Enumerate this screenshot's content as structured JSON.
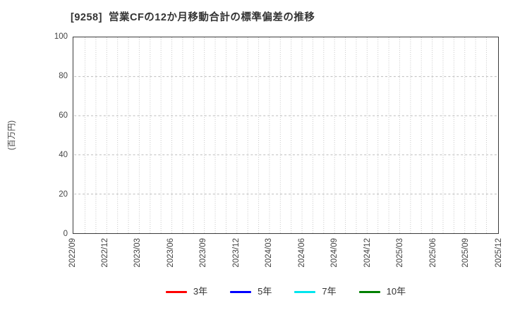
{
  "chart_data": {
    "type": "line",
    "title": "[9258]  営業CFの12か月移動合計の標準偏差の推移",
    "ylabel": "(百万円)",
    "xlabel": "",
    "ylim": [
      0,
      100
    ],
    "yticks": [
      0,
      20,
      40,
      60,
      80,
      100
    ],
    "x_tick_labels": [
      "2022/09",
      "2022/12",
      "2023/03",
      "2023/06",
      "2023/09",
      "2023/12",
      "2024/03",
      "2024/06",
      "2024/09",
      "2024/12",
      "2025/03",
      "2025/06",
      "2025/09",
      "2025/12"
    ],
    "x_minor_divisions_per_major": 3,
    "grid": true,
    "legend_position": "bottom",
    "plot_is_empty": true,
    "series": [
      {
        "name": "3年",
        "color": "#ff0000",
        "values": []
      },
      {
        "name": "5年",
        "color": "#0000ff",
        "values": []
      },
      {
        "name": "7年",
        "color": "#00e5ee",
        "values": []
      },
      {
        "name": "10年",
        "color": "#008000",
        "values": []
      }
    ],
    "grid_color_vertical": "#c6c6c6",
    "grid_color_horizontal": "#bdbdbd",
    "axis_border_color": "#3c3c3c"
  }
}
